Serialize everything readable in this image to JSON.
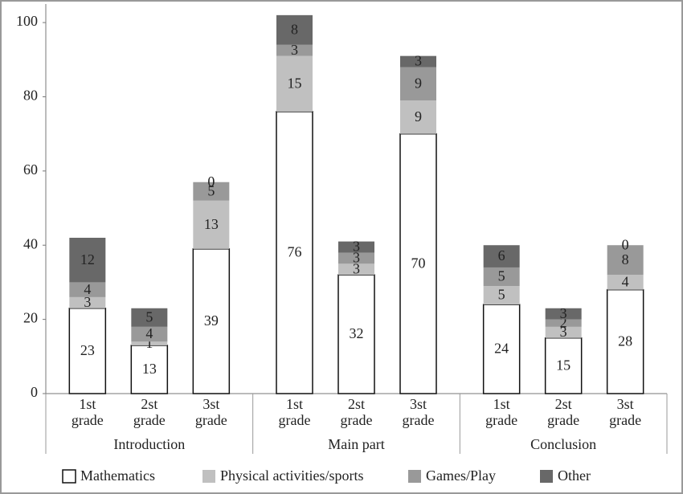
{
  "chart_data": {
    "type": "stacked-bar",
    "groups": [
      {
        "name": "Introduction",
        "categories": [
          "1st grade",
          "2st grade",
          "3st grade"
        ]
      },
      {
        "name": "Main part",
        "categories": [
          "1st grade",
          "2st grade",
          "3st grade"
        ]
      },
      {
        "name": "Conclusion",
        "categories": [
          "1st grade",
          "2st grade",
          "3st grade"
        ]
      }
    ],
    "series": [
      {
        "name": "Mathematics",
        "color": "#ffffff",
        "values": [
          23,
          13,
          39,
          76,
          32,
          70,
          24,
          15,
          28
        ]
      },
      {
        "name": "Physical activities/sports",
        "color": "#c0c0c0",
        "values": [
          3,
          1,
          13,
          15,
          3,
          9,
          5,
          3,
          4
        ]
      },
      {
        "name": "Games/Play",
        "color": "#999999",
        "values": [
          4,
          4,
          5,
          3,
          3,
          9,
          5,
          2,
          8
        ]
      },
      {
        "name": "Other",
        "color": "#686868",
        "values": [
          12,
          5,
          0,
          8,
          3,
          3,
          6,
          3,
          0
        ]
      }
    ],
    "ylim": [
      0,
      105
    ],
    "yticks": [
      0,
      20,
      40,
      60,
      80,
      100
    ],
    "grid": false,
    "legend": "bottom"
  }
}
